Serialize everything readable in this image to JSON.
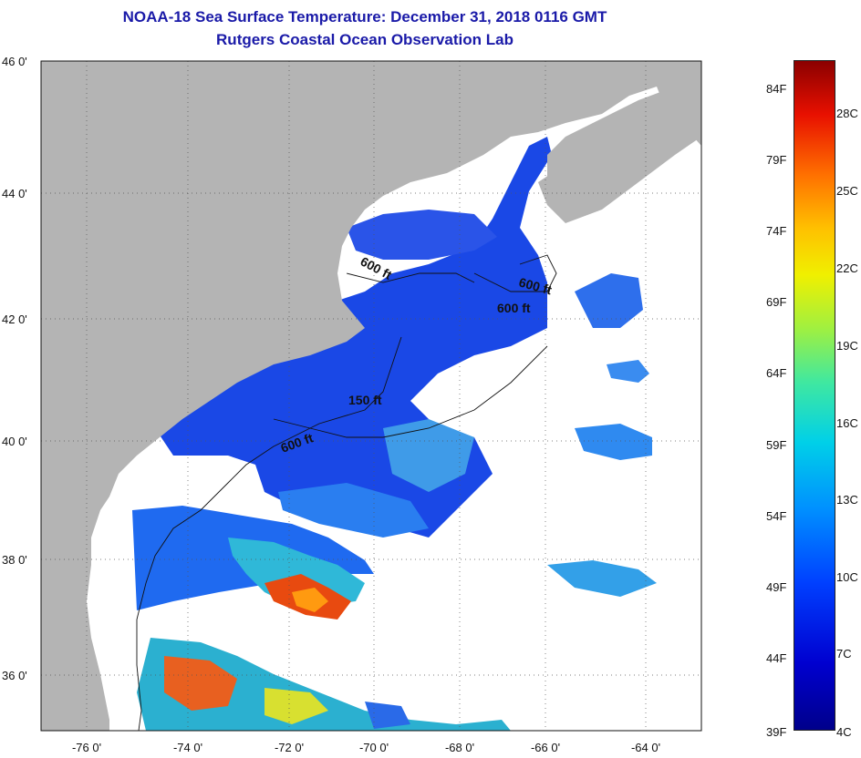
{
  "header": {
    "title": "NOAA-18 Sea Surface Temperature:  December 31, 2018 0116 GMT",
    "subtitle": "Rutgers Coastal Ocean Observation Lab"
  },
  "map": {
    "lat_labels": [
      "46 0'",
      "44 0'",
      "42 0'",
      "40 0'",
      "38 0'",
      "36 0'"
    ],
    "lon_labels": [
      "-76 0'",
      "-74 0'",
      "-72 0'",
      "-70 0'",
      "-68 0'",
      "-66 0'",
      "-64 0'"
    ],
    "contour_labels": [
      "600 ft",
      "600 ft",
      "600 ft",
      "150 ft",
      "600 ft"
    ],
    "colors": {
      "land": "#b4b4b4",
      "no_data": "#ffffff",
      "grid": "#555555"
    }
  },
  "colorbar": {
    "fahrenheit": [
      "84F",
      "79F",
      "74F",
      "69F",
      "64F",
      "59F",
      "54F",
      "49F",
      "44F",
      "39F"
    ],
    "celsius": [
      "28C",
      "25C",
      "22C",
      "19C",
      "16C",
      "13C",
      "10C",
      "7C",
      "4C"
    ]
  }
}
